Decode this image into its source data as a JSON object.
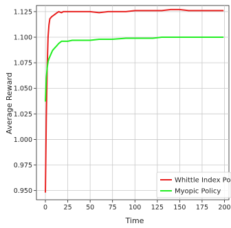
{
  "chart_data": {
    "type": "line",
    "xlabel": "Time",
    "ylabel": "Average Reward",
    "xlim": [
      -10,
      205
    ],
    "ylim": [
      0.941,
      1.131
    ],
    "grid": true,
    "legend_placement": "bottom-right",
    "x_ticks": [
      0,
      25,
      50,
      75,
      100,
      125,
      150,
      175,
      200
    ],
    "y_ticks": [
      0.95,
      0.975,
      1.0,
      1.025,
      1.05,
      1.075,
      1.1,
      1.125
    ],
    "x_tick_labels": [
      "0",
      "25",
      "50",
      "75",
      "100",
      "125",
      "150",
      "175",
      "200"
    ],
    "y_tick_labels": [
      "0.950",
      "0.975",
      "1.000",
      "1.025",
      "1.050",
      "1.075",
      "1.100",
      "1.125"
    ],
    "series": [
      {
        "name": "Whittle Index Policy",
        "color": "#e8201f",
        "x": [
          0,
          1,
          2,
          3,
          4,
          5,
          7,
          10,
          13,
          15,
          18,
          20,
          25,
          30,
          40,
          50,
          60,
          70,
          75,
          80,
          90,
          100,
          110,
          120,
          130,
          140,
          150,
          160,
          170,
          180,
          190,
          199
        ],
        "values": [
          0.948,
          1.02,
          1.07,
          1.1,
          1.112,
          1.118,
          1.12,
          1.122,
          1.124,
          1.125,
          1.124,
          1.125,
          1.125,
          1.125,
          1.125,
          1.125,
          1.124,
          1.125,
          1.125,
          1.125,
          1.125,
          1.126,
          1.126,
          1.126,
          1.126,
          1.127,
          1.127,
          1.126,
          1.126,
          1.126,
          1.126,
          1.126
        ]
      },
      {
        "name": "Myopic Policy",
        "color": "#22ee22",
        "x": [
          0,
          1,
          2,
          3,
          4,
          6,
          8,
          10,
          13,
          15,
          18,
          20,
          25,
          30,
          40,
          50,
          60,
          75,
          90,
          100,
          110,
          120,
          130,
          150,
          175,
          199
        ],
        "values": [
          1.037,
          1.06,
          1.07,
          1.076,
          1.079,
          1.083,
          1.087,
          1.089,
          1.092,
          1.094,
          1.096,
          1.096,
          1.096,
          1.097,
          1.097,
          1.097,
          1.098,
          1.098,
          1.099,
          1.099,
          1.099,
          1.099,
          1.1,
          1.1,
          1.1,
          1.1
        ]
      }
    ]
  }
}
